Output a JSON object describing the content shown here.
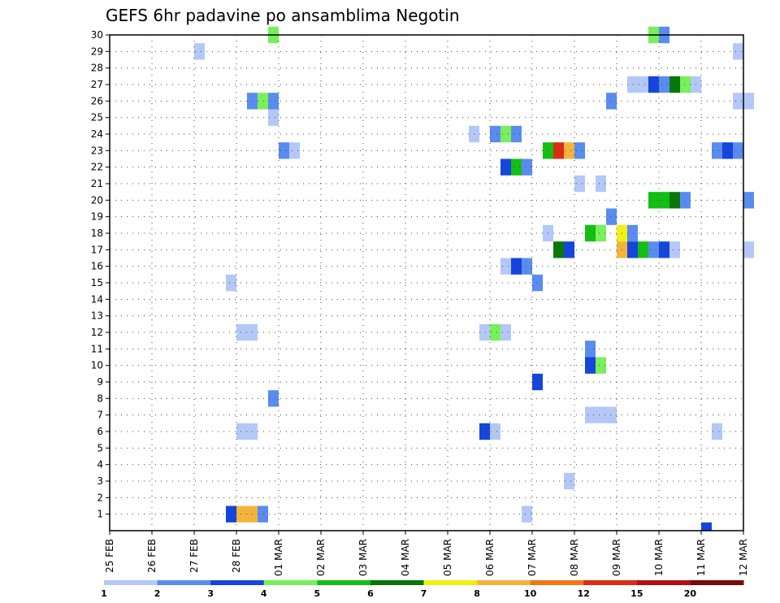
{
  "chart_data": {
    "type": "heatmap",
    "title": "GEFS 6hr padavine po ansamblima Negotin",
    "x_tick_labels": [
      "25 FEB",
      "26 FEB",
      "27 FEB",
      "28 FEB",
      "01 MAR",
      "02 MAR",
      "03 MAR",
      "04 MAR",
      "05 MAR",
      "06 MAR",
      "07 MAR",
      "08 MAR",
      "09 MAR",
      "10 MAR",
      "11 MAR",
      "12 MAR"
    ],
    "y_tick_labels": [
      "1",
      "2",
      "3",
      "4",
      "5",
      "6",
      "7",
      "8",
      "9",
      "10",
      "11",
      "12",
      "13",
      "14",
      "15",
      "16",
      "17",
      "18",
      "19",
      "20",
      "21",
      "22",
      "23",
      "24",
      "25",
      "26",
      "27",
      "28",
      "29",
      "30"
    ],
    "x_range_days": [
      0,
      15
    ],
    "y_range": [
      0,
      30
    ],
    "grid": true,
    "colorbar": {
      "levels": [
        "1",
        "2",
        "3",
        "4",
        "5",
        "6",
        "7",
        "8",
        "10",
        "12",
        "15",
        "20"
      ],
      "colors": [
        "#b4c8f8",
        "#5a8cf0",
        "#1446dc",
        "#78f05a",
        "#14be14",
        "#087808",
        "#f0f014",
        "#f4b43c",
        "#f07814",
        "#dc2d14",
        "#b40f14",
        "#780a0a"
      ]
    },
    "cells": [
      {
        "x": 3.75,
        "y": 30,
        "v": 4
      },
      {
        "x": 12.75,
        "y": 30,
        "v": 4
      },
      {
        "x": 13.0,
        "y": 30,
        "v": 2
      },
      {
        "x": 2.0,
        "y": 29,
        "v": 1
      },
      {
        "x": 14.75,
        "y": 29,
        "v": 1
      },
      {
        "x": 12.25,
        "y": 27,
        "v": 1
      },
      {
        "x": 12.5,
        "y": 27,
        "v": 1
      },
      {
        "x": 12.75,
        "y": 27,
        "v": 3
      },
      {
        "x": 13.0,
        "y": 27,
        "v": 2
      },
      {
        "x": 13.25,
        "y": 27,
        "v": 6
      },
      {
        "x": 13.5,
        "y": 27,
        "v": 4
      },
      {
        "x": 13.75,
        "y": 27,
        "v": 1
      },
      {
        "x": 3.25,
        "y": 26,
        "v": 2
      },
      {
        "x": 3.5,
        "y": 26,
        "v": 4
      },
      {
        "x": 3.75,
        "y": 26,
        "v": 2
      },
      {
        "x": 11.75,
        "y": 26,
        "v": 2
      },
      {
        "x": 14.75,
        "y": 26,
        "v": 1
      },
      {
        "x": 15.0,
        "y": 26,
        "v": 1
      },
      {
        "x": 3.75,
        "y": 25,
        "v": 1
      },
      {
        "x": 8.5,
        "y": 24,
        "v": 1
      },
      {
        "x": 9.0,
        "y": 24,
        "v": 2
      },
      {
        "x": 9.25,
        "y": 24,
        "v": 4
      },
      {
        "x": 9.5,
        "y": 24,
        "v": 2
      },
      {
        "x": 4.0,
        "y": 23,
        "v": 2
      },
      {
        "x": 4.25,
        "y": 23,
        "v": 1
      },
      {
        "x": 10.25,
        "y": 23,
        "v": 5
      },
      {
        "x": 10.5,
        "y": 23,
        "v": 14
      },
      {
        "x": 10.75,
        "y": 23,
        "v": 8
      },
      {
        "x": 11.0,
        "y": 23,
        "v": 2
      },
      {
        "x": 14.25,
        "y": 23,
        "v": 2
      },
      {
        "x": 14.5,
        "y": 23,
        "v": 3
      },
      {
        "x": 14.75,
        "y": 23,
        "v": 2
      },
      {
        "x": 9.25,
        "y": 22,
        "v": 3
      },
      {
        "x": 9.5,
        "y": 22,
        "v": 5
      },
      {
        "x": 9.75,
        "y": 22,
        "v": 2
      },
      {
        "x": 11.0,
        "y": 21,
        "v": 1
      },
      {
        "x": 11.5,
        "y": 21,
        "v": 1
      },
      {
        "x": 15.0,
        "y": 20,
        "v": 2
      },
      {
        "x": 12.75,
        "y": 20,
        "v": 5
      },
      {
        "x": 13.0,
        "y": 20,
        "v": 5
      },
      {
        "x": 13.25,
        "y": 20,
        "v": 6
      },
      {
        "x": 13.5,
        "y": 20,
        "v": 2
      },
      {
        "x": 11.75,
        "y": 19,
        "v": 2
      },
      {
        "x": 10.25,
        "y": 18,
        "v": 1
      },
      {
        "x": 11.25,
        "y": 18,
        "v": 5
      },
      {
        "x": 11.5,
        "y": 18,
        "v": 4
      },
      {
        "x": 12.0,
        "y": 18,
        "v": 7
      },
      {
        "x": 12.25,
        "y": 18,
        "v": 2
      },
      {
        "x": 10.5,
        "y": 17,
        "v": 6
      },
      {
        "x": 10.75,
        "y": 17,
        "v": 3
      },
      {
        "x": 12.0,
        "y": 17,
        "v": 8
      },
      {
        "x": 12.25,
        "y": 17,
        "v": 3
      },
      {
        "x": 12.5,
        "y": 17,
        "v": 5
      },
      {
        "x": 12.75,
        "y": 17,
        "v": 2
      },
      {
        "x": 13.0,
        "y": 17,
        "v": 3
      },
      {
        "x": 13.25,
        "y": 17,
        "v": 1
      },
      {
        "x": 15.0,
        "y": 17,
        "v": 1
      },
      {
        "x": 9.25,
        "y": 16,
        "v": 1
      },
      {
        "x": 9.5,
        "y": 16,
        "v": 3
      },
      {
        "x": 9.75,
        "y": 16,
        "v": 2
      },
      {
        "x": 2.75,
        "y": 15,
        "v": 1
      },
      {
        "x": 10.0,
        "y": 15,
        "v": 2
      },
      {
        "x": 3.0,
        "y": 12,
        "v": 1
      },
      {
        "x": 3.25,
        "y": 12,
        "v": 1
      },
      {
        "x": 8.75,
        "y": 12,
        "v": 1
      },
      {
        "x": 9.0,
        "y": 12,
        "v": 4
      },
      {
        "x": 9.25,
        "y": 12,
        "v": 1
      },
      {
        "x": 11.25,
        "y": 11,
        "v": 2
      },
      {
        "x": 11.25,
        "y": 10,
        "v": 3
      },
      {
        "x": 11.5,
        "y": 10,
        "v": 4
      },
      {
        "x": 10.0,
        "y": 9,
        "v": 3
      },
      {
        "x": 3.75,
        "y": 8,
        "v": 2
      },
      {
        "x": 11.25,
        "y": 7,
        "v": 1
      },
      {
        "x": 11.5,
        "y": 7,
        "v": 1
      },
      {
        "x": 11.75,
        "y": 7,
        "v": 1
      },
      {
        "x": 3.0,
        "y": 6,
        "v": 1
      },
      {
        "x": 3.25,
        "y": 6,
        "v": 1
      },
      {
        "x": 8.75,
        "y": 6,
        "v": 3
      },
      {
        "x": 9.0,
        "y": 6,
        "v": 1
      },
      {
        "x": 14.25,
        "y": 6,
        "v": 1
      },
      {
        "x": 10.75,
        "y": 3,
        "v": 1
      },
      {
        "x": 2.75,
        "y": 1,
        "v": 3
      },
      {
        "x": 3.0,
        "y": 1,
        "v": 9
      },
      {
        "x": 3.25,
        "y": 1,
        "v": 9
      },
      {
        "x": 3.5,
        "y": 1,
        "v": 2
      },
      {
        "x": 9.75,
        "y": 1,
        "v": 1
      },
      {
        "x": 14.0,
        "y": 0,
        "v": 3
      }
    ]
  }
}
